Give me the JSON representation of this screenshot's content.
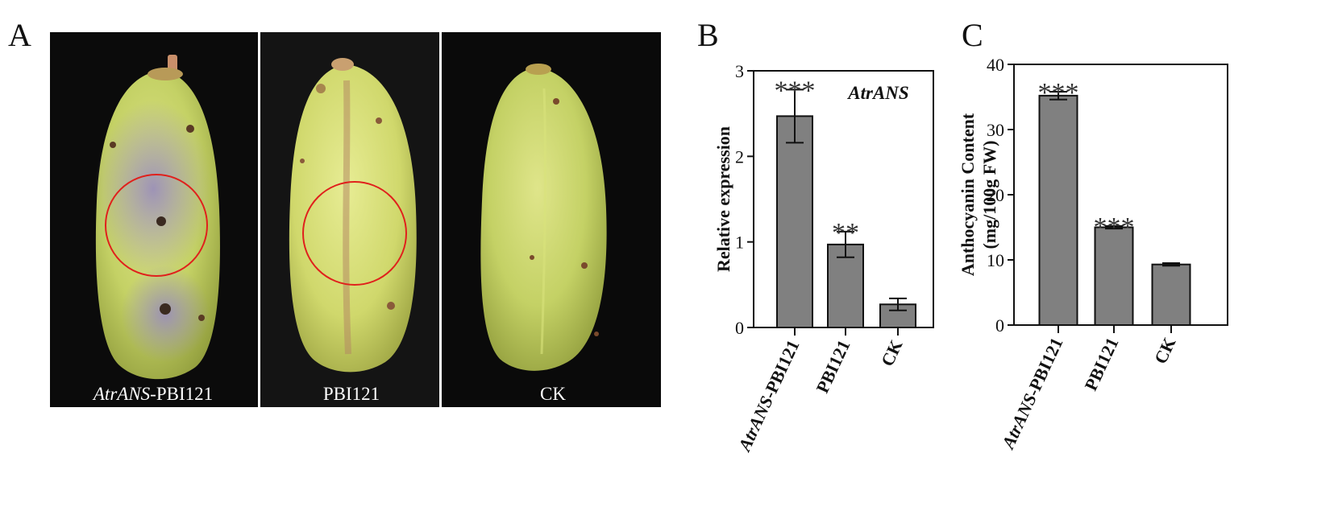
{
  "panels": {
    "a": {
      "letter": "A"
    },
    "b": {
      "letter": "B"
    },
    "c": {
      "letter": "C"
    }
  },
  "photo_labels": {
    "photo1": {
      "italic": "AtrANS",
      "rest": "-PBI121"
    },
    "photo2": "PBI121",
    "photo3": "CK"
  },
  "colors": {
    "bar_fill": "#808080",
    "photo_background": "#0a0a0a",
    "circle": "#e0201c",
    "fruit_green": "#c8d66a",
    "fruit_purple": "#9a8fb0"
  },
  "chart_data": [
    {
      "type": "bar",
      "panel": "B",
      "gene_label": "AtrANS",
      "ylabel": "Relative expression",
      "ylim": [
        0,
        3
      ],
      "yticks": [
        "0",
        "1",
        "2",
        "3"
      ],
      "categories": [
        {
          "italic": "AtrANS",
          "rest": "-PBI121"
        },
        {
          "italic": "",
          "rest": "PBI121"
        },
        {
          "italic": "",
          "rest": "CK"
        }
      ],
      "values": [
        2.47,
        0.97,
        0.27
      ],
      "errors": [
        0.31,
        0.15,
        0.07
      ],
      "significance": [
        "***",
        "**",
        ""
      ]
    },
    {
      "type": "bar",
      "panel": "C",
      "ylabel_line1": "Anthocyanin Content",
      "ylabel_line2": "(mg/100g FW)",
      "ylim": [
        0,
        40
      ],
      "yticks": [
        "0",
        "10",
        "20",
        "30",
        "40"
      ],
      "categories": [
        {
          "italic": "AtrANS",
          "rest": "-PBI121"
        },
        {
          "italic": "",
          "rest": "PBI121"
        },
        {
          "italic": "",
          "rest": "CK"
        }
      ],
      "values": [
        35.2,
        15.0,
        9.3
      ],
      "errors": [
        0.6,
        0.2,
        0.2
      ],
      "significance": [
        "***",
        "***",
        ""
      ]
    }
  ]
}
